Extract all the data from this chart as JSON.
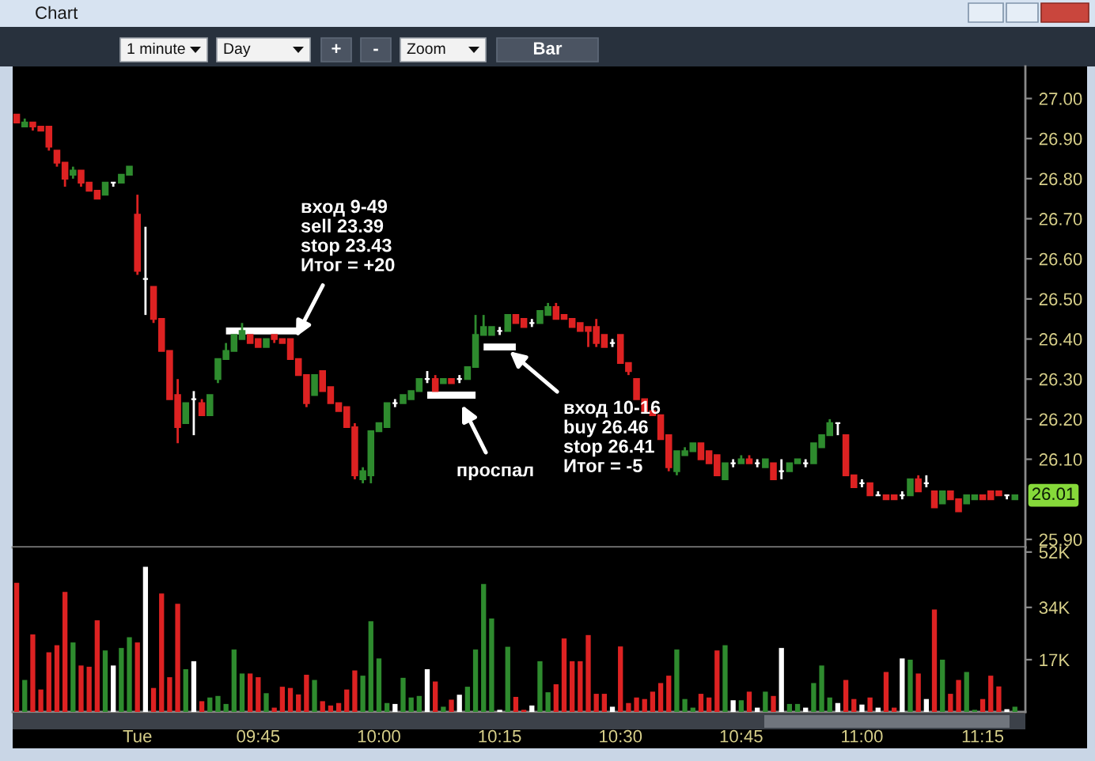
{
  "chart_data": [
    {
      "type": "candlestick",
      "title": "Chart",
      "annotations": [
        "1 minute",
        "Day",
        "+",
        "-",
        "Zoom",
        "Bar",
        "вход 9-49\nsell 23.39\nstop 23.43\nИтог = +20",
        "проспал",
        "вход 10-16\nbuy 26.46\nstop 26.41\nИтог = -5",
        {
          "text": "26.01",
          "y": 26.01
        }
      ],
      "categories": [
        null,
        null,
        null,
        null,
        null,
        null,
        null,
        null,
        null,
        null,
        null,
        null,
        null,
        null,
        null,
        null,
        null,
        null,
        null,
        null,
        null,
        null,
        null,
        null,
        null,
        null,
        null,
        null,
        null,
        null,
        null,
        null,
        null,
        null,
        null,
        null,
        null,
        null,
        null,
        null,
        null,
        null,
        null,
        null,
        null,
        null,
        null,
        null,
        null,
        null,
        null,
        null,
        null,
        null,
        null,
        null,
        null,
        null,
        null,
        null,
        null,
        null,
        null,
        null,
        null,
        null,
        null,
        null,
        null,
        null,
        null,
        null,
        null,
        null,
        null,
        null,
        null,
        null,
        null,
        null,
        null,
        null,
        null,
        null,
        null,
        null,
        null,
        null,
        null,
        null,
        null,
        null,
        null,
        null,
        null,
        null,
        null,
        null,
        null,
        null,
        null,
        null,
        null,
        null,
        null,
        null,
        null,
        null,
        null,
        null,
        null,
        null,
        null,
        null,
        null,
        null,
        null,
        null,
        null,
        null,
        null,
        null,
        null,
        null,
        null
      ],
      "ohlc": [
        [
          26.96,
          26.96,
          26.94,
          26.94
        ],
        [
          26.93,
          26.95,
          26.93,
          26.94
        ],
        [
          26.94,
          26.94,
          26.92,
          26.93
        ],
        [
          26.93,
          26.93,
          26.92,
          26.92
        ],
        [
          26.93,
          26.93,
          26.87,
          26.88
        ],
        [
          26.87,
          26.87,
          26.83,
          26.84
        ],
        [
          26.84,
          26.84,
          26.78,
          26.8
        ],
        [
          26.81,
          26.83,
          26.8,
          26.82
        ],
        [
          26.82,
          26.82,
          26.78,
          26.79
        ],
        [
          26.79,
          26.79,
          26.77,
          26.77
        ],
        [
          26.77,
          26.77,
          26.75,
          26.75
        ],
        [
          26.76,
          26.79,
          26.76,
          26.79
        ],
        [
          26.79,
          26.79,
          26.78,
          26.79
        ],
        [
          26.79,
          26.81,
          26.79,
          26.81
        ],
        [
          26.81,
          26.83,
          26.81,
          26.83
        ],
        [
          26.71,
          26.76,
          26.56,
          26.57
        ],
        [
          26.55,
          26.68,
          26.46,
          26.55
        ],
        [
          26.53,
          26.53,
          26.44,
          26.45
        ],
        [
          26.45,
          26.45,
          26.37,
          26.37
        ],
        [
          26.37,
          26.37,
          26.25,
          26.25
        ],
        [
          26.26,
          26.3,
          26.14,
          26.18
        ],
        [
          26.19,
          26.24,
          26.19,
          26.24
        ],
        [
          26.25,
          26.27,
          26.16,
          26.25
        ],
        [
          26.24,
          26.25,
          26.21,
          26.21
        ],
        [
          26.21,
          26.26,
          26.21,
          26.26
        ],
        [
          26.3,
          26.35,
          26.29,
          26.35
        ],
        [
          26.35,
          26.39,
          26.35,
          26.37
        ],
        [
          26.37,
          26.41,
          26.37,
          26.41
        ],
        [
          26.4,
          26.44,
          26.4,
          26.42
        ],
        [
          26.41,
          26.41,
          26.39,
          26.39
        ],
        [
          26.4,
          26.4,
          26.38,
          26.38
        ],
        [
          26.38,
          26.4,
          26.38,
          26.4
        ],
        [
          26.41,
          26.41,
          26.39,
          26.4
        ],
        [
          26.4,
          26.4,
          26.39,
          26.39
        ],
        [
          26.4,
          26.4,
          26.35,
          26.35
        ],
        [
          26.35,
          26.35,
          26.31,
          26.31
        ],
        [
          26.31,
          26.31,
          26.23,
          26.24
        ],
        [
          26.26,
          26.31,
          26.26,
          26.31
        ],
        [
          26.32,
          26.32,
          26.27,
          26.27
        ],
        [
          26.28,
          26.28,
          26.24,
          26.24
        ],
        [
          26.24,
          26.24,
          26.22,
          26.22
        ],
        [
          26.23,
          26.23,
          26.18,
          26.18
        ],
        [
          26.18,
          26.19,
          26.05,
          26.06
        ],
        [
          26.05,
          26.08,
          26.04,
          26.07
        ],
        [
          26.06,
          26.17,
          26.04,
          26.17
        ],
        [
          26.17,
          26.19,
          26.17,
          26.19
        ],
        [
          26.18,
          26.24,
          26.18,
          26.24
        ],
        [
          26.24,
          26.25,
          26.23,
          26.24
        ],
        [
          26.24,
          26.26,
          26.24,
          26.26
        ],
        [
          26.25,
          26.27,
          26.25,
          26.27
        ],
        [
          26.27,
          26.3,
          26.27,
          26.3
        ],
        [
          26.3,
          26.32,
          26.29,
          26.3
        ],
        [
          26.3,
          26.31,
          26.27,
          26.27
        ],
        [
          26.29,
          26.3,
          26.29,
          26.3
        ],
        [
          26.3,
          26.3,
          26.29,
          26.29
        ],
        [
          26.3,
          26.31,
          26.29,
          26.3
        ],
        [
          26.3,
          26.33,
          26.3,
          26.33
        ],
        [
          26.33,
          26.46,
          26.33,
          26.41
        ],
        [
          26.41,
          26.46,
          26.41,
          26.43
        ],
        [
          26.41,
          26.43,
          26.41,
          26.43
        ],
        [
          26.42,
          26.43,
          26.41,
          26.42
        ],
        [
          26.42,
          26.46,
          26.42,
          26.46
        ],
        [
          26.46,
          26.46,
          26.44,
          26.44
        ],
        [
          26.45,
          26.45,
          26.43,
          26.43
        ],
        [
          26.44,
          26.45,
          26.43,
          26.44
        ],
        [
          26.44,
          26.47,
          26.44,
          26.47
        ],
        [
          26.46,
          26.49,
          26.46,
          26.48
        ],
        [
          26.48,
          26.49,
          26.45,
          26.45
        ],
        [
          26.46,
          26.46,
          26.45,
          26.45
        ],
        [
          26.45,
          26.45,
          26.43,
          26.43
        ],
        [
          26.44,
          26.44,
          26.42,
          26.42
        ],
        [
          26.43,
          26.43,
          26.38,
          26.42
        ],
        [
          26.43,
          26.45,
          26.38,
          26.39
        ],
        [
          26.41,
          26.41,
          26.38,
          26.38
        ],
        [
          26.39,
          26.4,
          26.38,
          26.39
        ],
        [
          26.41,
          26.41,
          26.34,
          26.34
        ],
        [
          26.34,
          26.34,
          26.31,
          26.32
        ],
        [
          26.3,
          26.3,
          26.25,
          26.25
        ],
        [
          26.25,
          26.25,
          26.22,
          26.22
        ],
        [
          26.22,
          26.22,
          26.21,
          26.21
        ],
        [
          26.21,
          26.21,
          26.15,
          26.15
        ],
        [
          26.16,
          26.16,
          26.07,
          26.08
        ],
        [
          26.07,
          26.12,
          26.06,
          26.12
        ],
        [
          26.11,
          26.13,
          26.11,
          26.12
        ],
        [
          26.12,
          26.14,
          26.12,
          26.14
        ],
        [
          26.14,
          26.14,
          26.1,
          26.1
        ],
        [
          26.12,
          26.12,
          26.09,
          26.09
        ],
        [
          26.11,
          26.11,
          26.06,
          26.06
        ],
        [
          26.05,
          26.09,
          26.05,
          26.09
        ],
        [
          26.09,
          26.1,
          26.08,
          26.09
        ],
        [
          26.09,
          26.11,
          26.09,
          26.1
        ],
        [
          26.1,
          26.11,
          26.09,
          26.09
        ],
        [
          26.09,
          26.1,
          26.08,
          26.09
        ],
        [
          26.08,
          26.1,
          26.08,
          26.1
        ],
        [
          26.09,
          26.09,
          26.05,
          26.05
        ],
        [
          26.07,
          26.1,
          26.05,
          26.07
        ],
        [
          26.07,
          26.09,
          26.07,
          26.09
        ],
        [
          26.09,
          26.1,
          26.09,
          26.1
        ],
        [
          26.09,
          26.1,
          26.08,
          26.09
        ],
        [
          26.09,
          26.14,
          26.09,
          26.14
        ],
        [
          26.13,
          26.16,
          26.13,
          26.16
        ],
        [
          26.16,
          26.2,
          26.16,
          26.19
        ],
        [
          26.19,
          26.19,
          26.16,
          26.19
        ],
        [
          26.16,
          26.16,
          26.06,
          26.06
        ],
        [
          26.06,
          26.06,
          26.03,
          26.03
        ],
        [
          26.04,
          26.05,
          26.03,
          26.04
        ],
        [
          26.04,
          26.04,
          26.01,
          26.01
        ],
        [
          26.01,
          26.02,
          26.01,
          26.01
        ],
        [
          26.01,
          26.01,
          26.0,
          26.0
        ],
        [
          26.01,
          26.01,
          26.0,
          26.0
        ],
        [
          26.01,
          26.02,
          26.0,
          26.01
        ],
        [
          26.01,
          26.05,
          26.01,
          26.05
        ],
        [
          26.05,
          26.06,
          26.02,
          26.02
        ],
        [
          26.04,
          26.06,
          26.03,
          26.04
        ],
        [
          26.02,
          26.02,
          25.98,
          25.98
        ],
        [
          25.99,
          26.02,
          25.99,
          26.02
        ],
        [
          26.02,
          26.02,
          26.0,
          26.0
        ],
        [
          26.0,
          26.0,
          25.97,
          25.97
        ],
        [
          25.99,
          26.01,
          25.99,
          26.01
        ],
        [
          26.0,
          26.01,
          26.0,
          26.01
        ],
        [
          26.01,
          26.01,
          26.0,
          26.0
        ],
        [
          26.02,
          26.02,
          26.0,
          26.0
        ],
        [
          26.02,
          26.02,
          26.01,
          26.01
        ],
        [
          26.01,
          26.01,
          26.0,
          26.01
        ],
        [
          26.0,
          26.01,
          26.0,
          26.01
        ]
      ],
      "colors": [
        "#dd2222",
        "#2e8b2e",
        "#dd2222",
        "#dd2222",
        "#dd2222",
        "#dd2222",
        "#dd2222",
        "#2e8b2e",
        "#dd2222",
        "#dd2222",
        "#dd2222",
        "#2e8b2e",
        "#ffffff",
        "#2e8b2e",
        "#2e8b2e",
        "#dd2222",
        "#ffffff",
        "#dd2222",
        "#dd2222",
        "#dd2222",
        "#dd2222",
        "#2e8b2e",
        "#ffffff",
        "#dd2222",
        "#2e8b2e",
        "#2e8b2e",
        "#2e8b2e",
        "#2e8b2e",
        "#2e8b2e",
        "#dd2222",
        "#dd2222",
        "#2e8b2e",
        "#dd2222",
        "#dd2222",
        "#dd2222",
        "#dd2222",
        "#dd2222",
        "#2e8b2e",
        "#dd2222",
        "#dd2222",
        "#dd2222",
        "#dd2222",
        "#dd2222",
        "#2e8b2e",
        "#2e8b2e",
        "#2e8b2e",
        "#2e8b2e",
        "#ffffff",
        "#2e8b2e",
        "#2e8b2e",
        "#2e8b2e",
        "#ffffff",
        "#dd2222",
        "#2e8b2e",
        "#dd2222",
        "#ffffff",
        "#2e8b2e",
        "#2e8b2e",
        "#2e8b2e",
        "#2e8b2e",
        "#ffffff",
        "#2e8b2e",
        "#dd2222",
        "#dd2222",
        "#ffffff",
        "#2e8b2e",
        "#2e8b2e",
        "#dd2222",
        "#dd2222",
        "#dd2222",
        "#dd2222",
        "#dd2222",
        "#dd2222",
        "#dd2222",
        "#ffffff",
        "#dd2222",
        "#dd2222",
        "#dd2222",
        "#dd2222",
        "#dd2222",
        "#dd2222",
        "#dd2222",
        "#2e8b2e",
        "#2e8b2e",
        "#2e8b2e",
        "#dd2222",
        "#dd2222",
        "#dd2222",
        "#2e8b2e",
        "#ffffff",
        "#2e8b2e",
        "#dd2222",
        "#ffffff",
        "#2e8b2e",
        "#dd2222",
        "#ffffff",
        "#2e8b2e",
        "#2e8b2e",
        "#ffffff",
        "#2e8b2e",
        "#2e8b2e",
        "#2e8b2e",
        "#ffffff",
        "#dd2222",
        "#dd2222",
        "#ffffff",
        "#dd2222",
        "#ffffff",
        "#dd2222",
        "#dd2222",
        "#ffffff",
        "#2e8b2e",
        "#dd2222",
        "#ffffff",
        "#dd2222",
        "#2e8b2e",
        "#dd2222",
        "#dd2222",
        "#2e8b2e",
        "#2e8b2e",
        "#dd2222",
        "#dd2222",
        "#dd2222",
        "#ffffff",
        "#2e8b2e"
      ],
      "series": [
        {
          "type": "line",
          "color": "#ffffff",
          "values": [
            null,
            null,
            null,
            null,
            null,
            null,
            null,
            null,
            null,
            null,
            null,
            null,
            null,
            null,
            null,
            null,
            null,
            null,
            null,
            null,
            null,
            null,
            null,
            null,
            null,
            null,
            26.42,
            26.42,
            26.42,
            26.42,
            26.42,
            26.42,
            26.42,
            26.42,
            26.42,
            26.42,
            null,
            null,
            null,
            null,
            null,
            null,
            null,
            null,
            null,
            null,
            null,
            null,
            null,
            null,
            null,
            null,
            null,
            null,
            null,
            null,
            null,
            null,
            null,
            null,
            null,
            null,
            null,
            null,
            null,
            null,
            null,
            null,
            null,
            null,
            null,
            null,
            null,
            null,
            null,
            null,
            null,
            null,
            null,
            null,
            null,
            null,
            null,
            null,
            null,
            null,
            null,
            null,
            null,
            null,
            null,
            null,
            null,
            null,
            null,
            null,
            null,
            null,
            null,
            null,
            null,
            null,
            null,
            null,
            null,
            null,
            null,
            null,
            null,
            null,
            null,
            null,
            null,
            null,
            null,
            null,
            null,
            null,
            null,
            null,
            null,
            null,
            null,
            null,
            null
          ]
        },
        {
          "type": "line",
          "color": "#ffffff",
          "values": [
            null,
            null,
            null,
            null,
            null,
            null,
            null,
            null,
            null,
            null,
            null,
            null,
            null,
            null,
            null,
            null,
            null,
            null,
            null,
            null,
            null,
            null,
            null,
            null,
            null,
            null,
            null,
            null,
            null,
            null,
            null,
            null,
            null,
            null,
            null,
            null,
            null,
            null,
            null,
            null,
            null,
            null,
            null,
            null,
            null,
            null,
            null,
            null,
            null,
            null,
            null,
            26.26,
            26.26,
            26.26,
            26.26,
            26.26,
            26.26,
            26.26,
            null,
            null,
            null,
            null,
            null,
            null,
            null,
            null,
            null,
            null,
            null,
            null,
            null,
            null,
            null,
            null,
            null,
            null,
            null,
            null,
            null,
            null,
            null,
            null,
            null,
            null,
            null,
            null,
            null,
            null,
            null,
            null,
            null,
            null,
            null,
            null,
            null,
            null,
            null,
            null,
            null,
            null,
            null,
            null,
            null,
            null,
            null,
            null,
            null,
            null,
            null,
            null,
            null,
            null,
            null,
            null,
            null,
            null,
            null,
            null,
            null,
            null,
            null,
            null,
            null,
            null,
            null
          ]
        },
        {
          "type": "line",
          "color": "#ffffff",
          "values": [
            null,
            null,
            null,
            null,
            null,
            null,
            null,
            null,
            null,
            null,
            null,
            null,
            null,
            null,
            null,
            null,
            null,
            null,
            null,
            null,
            null,
            null,
            null,
            null,
            null,
            null,
            null,
            null,
            null,
            null,
            null,
            null,
            null,
            null,
            null,
            null,
            null,
            null,
            null,
            null,
            null,
            null,
            null,
            null,
            null,
            null,
            null,
            null,
            null,
            null,
            null,
            null,
            null,
            null,
            null,
            null,
            null,
            null,
            26.38,
            26.38,
            26.38,
            26.38,
            26.38,
            null,
            null,
            null,
            null,
            null,
            null,
            null,
            null,
            null,
            null,
            null,
            null,
            null,
            null,
            null,
            null,
            null,
            null,
            null,
            null,
            null,
            null,
            null,
            null,
            null,
            null,
            null,
            null,
            null,
            null,
            null,
            null,
            null,
            null,
            null,
            null,
            null,
            null,
            null,
            null,
            null,
            null,
            null,
            null,
            null,
            null,
            null,
            null,
            null,
            null,
            null,
            null,
            null,
            null,
            null,
            null,
            null,
            null,
            null,
            null,
            null,
            null
          ]
        }
      ],
      "ylim": [
        25.88,
        27.08
      ],
      "yticks": [
        {
          "value": 25.9,
          "label": "25.90"
        },
        {
          "value": 26.1,
          "label": "26.10"
        },
        {
          "value": 26.2,
          "label": "26.20"
        },
        {
          "value": 26.3,
          "label": "26.30"
        },
        {
          "value": 26.4,
          "label": "26.40"
        },
        {
          "value": 26.5,
          "label": "26.50"
        },
        {
          "value": 26.6,
          "label": "26.60"
        },
        {
          "value": 26.7,
          "label": "26.70"
        },
        {
          "value": 26.8,
          "label": "26.80"
        },
        {
          "value": 26.9,
          "label": "26.90"
        },
        {
          "value": 27.0,
          "label": "27.00"
        }
      ]
    },
    {
      "type": "bar",
      "categories": [
        null,
        null,
        null,
        null,
        null,
        null,
        null,
        null,
        null,
        null,
        null,
        null,
        null,
        null,
        null,
        "Tue",
        null,
        null,
        null,
        null,
        null,
        null,
        null,
        null,
        null,
        null,
        null,
        null,
        null,
        null,
        "09:45",
        null,
        null,
        null,
        null,
        null,
        null,
        null,
        null,
        null,
        null,
        null,
        null,
        null,
        null,
        "10:00",
        null,
        null,
        null,
        null,
        null,
        null,
        null,
        null,
        null,
        null,
        null,
        null,
        null,
        null,
        "10:15",
        null,
        null,
        null,
        null,
        null,
        null,
        null,
        null,
        null,
        null,
        null,
        null,
        null,
        null,
        "10:30",
        null,
        null,
        null,
        null,
        null,
        null,
        null,
        null,
        null,
        null,
        null,
        null,
        null,
        null,
        "10:45",
        null,
        null,
        null,
        null,
        null,
        null,
        null,
        null,
        null,
        null,
        null,
        null,
        null,
        null,
        "11:00",
        null,
        null,
        null,
        null,
        null,
        null,
        null,
        null,
        null,
        null,
        null,
        null,
        null,
        null,
        "11:15",
        null,
        null,
        null,
        null
      ],
      "values": [
        42000,
        10400,
        25200,
        7300,
        19400,
        21700,
        39000,
        22600,
        15100,
        14700,
        29800,
        20000,
        15100,
        20800,
        24300,
        22600,
        47200,
        7800,
        38500,
        11300,
        35200,
        13900,
        16500,
        3500,
        4700,
        5200,
        2600,
        20300,
        12500,
        12500,
        11300,
        6100,
        1400,
        8200,
        7800,
        5700,
        12100,
        10400,
        3500,
        2100,
        2900,
        7300,
        13500,
        11800,
        29500,
        17400,
        2900,
        2600,
        11100,
        4700,
        5200,
        13900,
        9900,
        1700,
        4000,
        5600,
        8200,
        20300,
        41600,
        30400,
        700,
        21200,
        4900,
        700,
        2100,
        16500,
        6400,
        9000,
        23900,
        16500,
        16500,
        25000,
        5900,
        5900,
        1700,
        21300,
        2900,
        4700,
        4200,
        6600,
        9400,
        11800,
        20300,
        4200,
        1400,
        5900,
        4700,
        20000,
        21700,
        3800,
        3800,
        6600,
        1400,
        6600,
        5200,
        20800,
        2600,
        2600,
        1400,
        9400,
        15100,
        4700,
        2900,
        10400,
        4200,
        2400,
        4700,
        1400,
        13000,
        1400,
        17400,
        17000,
        12500,
        4200,
        33300,
        17000,
        5900,
        10400,
        13000,
        700,
        4200,
        11800,
        8300,
        900,
        1700
      ],
      "colors": [
        "#dd2222",
        "#2e8b2e",
        "#dd2222",
        "#dd2222",
        "#dd2222",
        "#dd2222",
        "#dd2222",
        "#2e8b2e",
        "#dd2222",
        "#dd2222",
        "#dd2222",
        "#2e8b2e",
        "#ffffff",
        "#2e8b2e",
        "#2e8b2e",
        "#dd2222",
        "#ffffff",
        "#dd2222",
        "#dd2222",
        "#dd2222",
        "#dd2222",
        "#2e8b2e",
        "#ffffff",
        "#dd2222",
        "#2e8b2e",
        "#2e8b2e",
        "#2e8b2e",
        "#2e8b2e",
        "#2e8b2e",
        "#dd2222",
        "#dd2222",
        "#2e8b2e",
        "#dd2222",
        "#dd2222",
        "#dd2222",
        "#dd2222",
        "#dd2222",
        "#2e8b2e",
        "#dd2222",
        "#dd2222",
        "#dd2222",
        "#dd2222",
        "#dd2222",
        "#2e8b2e",
        "#2e8b2e",
        "#2e8b2e",
        "#2e8b2e",
        "#ffffff",
        "#2e8b2e",
        "#2e8b2e",
        "#2e8b2e",
        "#ffffff",
        "#dd2222",
        "#2e8b2e",
        "#dd2222",
        "#ffffff",
        "#2e8b2e",
        "#2e8b2e",
        "#2e8b2e",
        "#2e8b2e",
        "#ffffff",
        "#2e8b2e",
        "#dd2222",
        "#dd2222",
        "#ffffff",
        "#2e8b2e",
        "#2e8b2e",
        "#dd2222",
        "#dd2222",
        "#dd2222",
        "#dd2222",
        "#dd2222",
        "#dd2222",
        "#dd2222",
        "#ffffff",
        "#dd2222",
        "#dd2222",
        "#dd2222",
        "#dd2222",
        "#dd2222",
        "#dd2222",
        "#dd2222",
        "#2e8b2e",
        "#2e8b2e",
        "#2e8b2e",
        "#dd2222",
        "#dd2222",
        "#dd2222",
        "#2e8b2e",
        "#ffffff",
        "#2e8b2e",
        "#dd2222",
        "#ffffff",
        "#2e8b2e",
        "#dd2222",
        "#ffffff",
        "#2e8b2e",
        "#2e8b2e",
        "#ffffff",
        "#2e8b2e",
        "#2e8b2e",
        "#2e8b2e",
        "#ffffff",
        "#dd2222",
        "#dd2222",
        "#ffffff",
        "#dd2222",
        "#ffffff",
        "#dd2222",
        "#dd2222",
        "#ffffff",
        "#2e8b2e",
        "#dd2222",
        "#ffffff",
        "#dd2222",
        "#2e8b2e",
        "#dd2222",
        "#dd2222",
        "#2e8b2e",
        "#2e8b2e",
        "#dd2222",
        "#dd2222",
        "#dd2222",
        "#ffffff",
        "#2e8b2e"
      ],
      "ylim": [
        0,
        53500
      ],
      "yticks": [
        {
          "value": 17000,
          "label": "17K"
        },
        {
          "value": 34000,
          "label": "34K"
        },
        {
          "value": 52000,
          "label": "52K"
        }
      ]
    }
  ]
}
